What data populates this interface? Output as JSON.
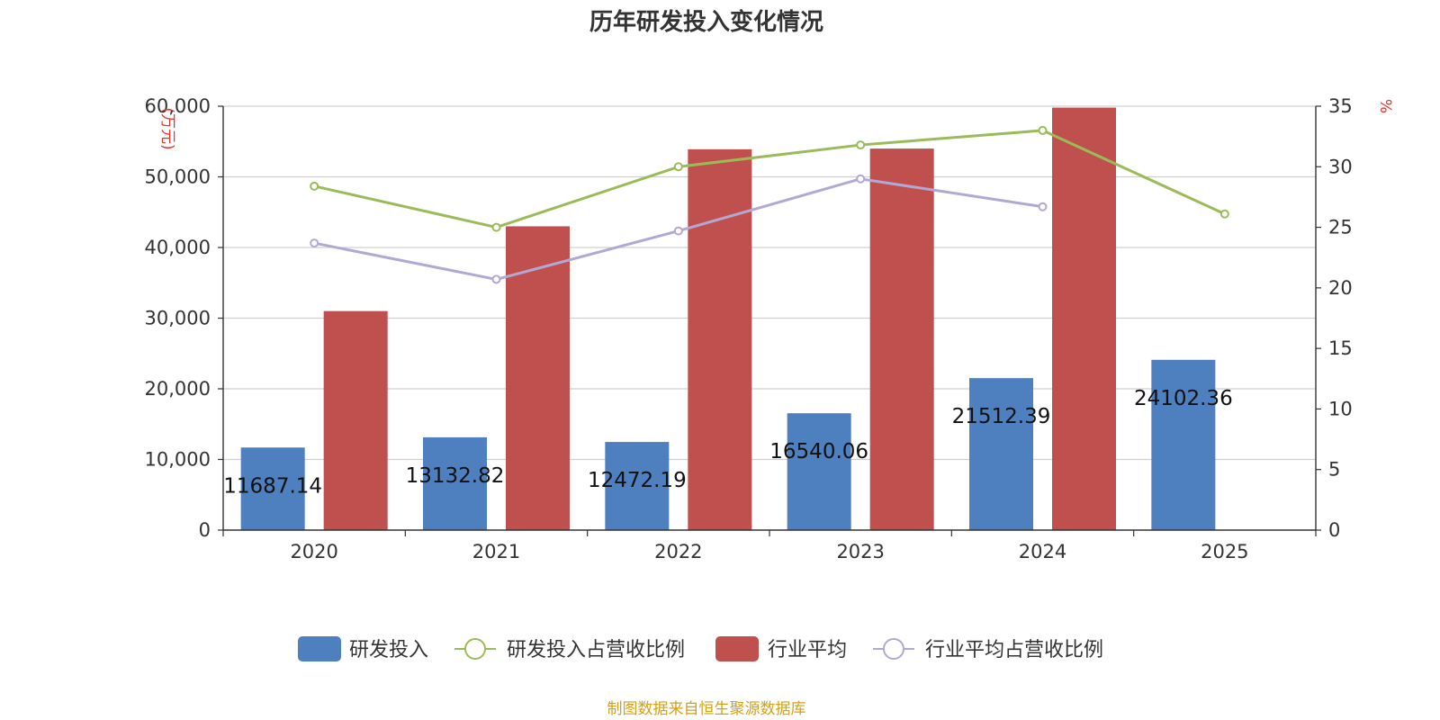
{
  "chart_data": {
    "type": "bar+line",
    "title": "历年研发投入变化情况",
    "categories": [
      "2020",
      "2021",
      "2022",
      "2023",
      "2024",
      "2025"
    ],
    "y_left": {
      "unit": "(万元)",
      "min": 0,
      "max": 60000,
      "ticks": [
        "0",
        "10,000",
        "20,000",
        "30,000",
        "40,000",
        "50,000",
        "60,000"
      ]
    },
    "y_right": {
      "unit": "%",
      "min": 0,
      "max": 35,
      "ticks": [
        "0",
        "5",
        "10",
        "15",
        "20",
        "25",
        "30",
        "35"
      ]
    },
    "series": [
      {
        "name": "研发投入",
        "type": "bar",
        "axis": "left",
        "color": "#4e7fbf",
        "values": [
          11687.14,
          13132.82,
          12472.19,
          16540.06,
          21512.39,
          24102.36
        ],
        "labels": [
          "11687.14",
          "13132.82",
          "12472.19",
          "16540.06",
          "21512.39",
          "24102.36"
        ]
      },
      {
        "name": "研发投入占营收比例",
        "type": "line",
        "axis": "right",
        "color": "#9bbb59",
        "values": [
          28.4,
          25.0,
          30.0,
          31.8,
          33.0,
          26.1
        ]
      },
      {
        "name": "行业平均",
        "type": "bar",
        "axis": "left",
        "color": "#c0504d",
        "values": [
          31000,
          43000,
          53900,
          54000,
          59800,
          null
        ]
      },
      {
        "name": "行业平均占营收比例",
        "type": "line",
        "axis": "right",
        "color": "#b3a8d4",
        "values": [
          23.7,
          20.7,
          24.7,
          29.0,
          26.7,
          null
        ]
      }
    ],
    "legend_position": "bottom",
    "grid": true
  },
  "source": {
    "text": "制图数据来自恒生聚源数据库",
    "color": "#d4a017"
  },
  "colors": {
    "unit_label": "#e8322b",
    "axis": "#333333",
    "grid": "#d0d0d0"
  }
}
